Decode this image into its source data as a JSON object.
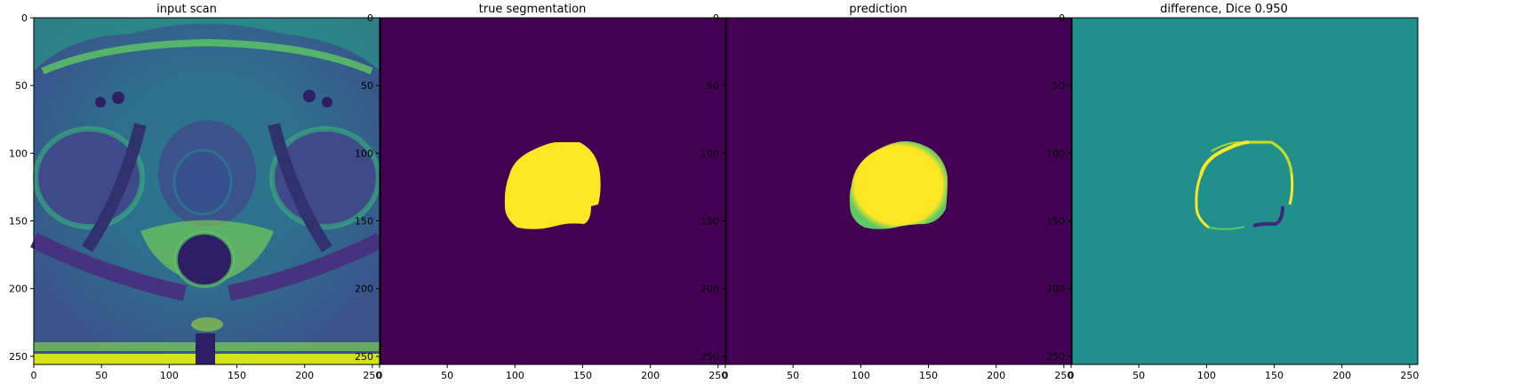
{
  "figure": {
    "panels": [
      {
        "id": "input",
        "title": "input scan"
      },
      {
        "id": "truth",
        "title": "true segmentation"
      },
      {
        "id": "pred",
        "title": "prediction"
      },
      {
        "id": "diff",
        "title": "difference, Dice 0.950"
      }
    ],
    "axis": {
      "xticks": [
        0,
        50,
        100,
        150,
        200,
        250
      ],
      "yticks": [
        0,
        50,
        100,
        150,
        200,
        250
      ],
      "range": [
        0,
        256
      ]
    },
    "colormap": "viridis",
    "colors": {
      "background_dark": "#440154",
      "mask_yellow": "#fde725",
      "diff_mid": "#21908d",
      "diff_low": "#3b2a7a"
    }
  },
  "chart_data": [
    {
      "type": "heatmap",
      "title": "input scan",
      "xlim": [
        0,
        256
      ],
      "ylim": [
        256,
        0
      ],
      "xticks": [
        0,
        50,
        100,
        150,
        200,
        250
      ],
      "yticks": [
        0,
        50,
        100,
        150,
        200,
        250
      ]
    },
    {
      "type": "heatmap",
      "title": "true segmentation",
      "xlim": [
        0,
        256
      ],
      "ylim": [
        256,
        0
      ],
      "xticks": [
        0,
        50,
        100,
        150,
        200,
        250
      ],
      "yticks": [
        0,
        50,
        100,
        150,
        200,
        250
      ]
    },
    {
      "type": "heatmap",
      "title": "prediction",
      "xlim": [
        0,
        256
      ],
      "ylim": [
        256,
        0
      ],
      "xticks": [
        0,
        50,
        100,
        150,
        200,
        250
      ],
      "yticks": [
        0,
        50,
        100,
        150,
        200,
        250
      ]
    },
    {
      "type": "heatmap",
      "title": "difference, Dice 0.950",
      "xlim": [
        0,
        256
      ],
      "ylim": [
        256,
        0
      ],
      "xticks": [
        0,
        50,
        100,
        150,
        200,
        250
      ],
      "yticks": [
        0,
        50,
        100,
        150,
        200,
        250
      ]
    }
  ]
}
